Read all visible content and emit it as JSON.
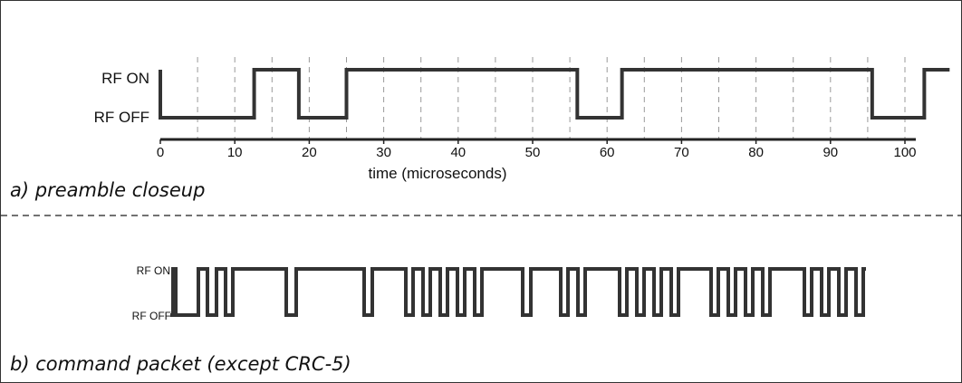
{
  "panel_a": {
    "signal_labels": {
      "on": "RF ON",
      "off": "RF OFF"
    },
    "caption": "a) preamble closeup",
    "xlabel": "time (microseconds)",
    "ticks": [
      "0",
      "10",
      "20",
      "30",
      "40",
      "50",
      "60",
      "70",
      "80",
      "90",
      "100"
    ],
    "levels": [
      {
        "t": 0,
        "v": 0
      },
      {
        "t": 12.6,
        "v": 1
      },
      {
        "t": 18.6,
        "v": 0
      },
      {
        "t": 25,
        "v": 1
      },
      {
        "t": 56,
        "v": 0
      },
      {
        "t": 62,
        "v": 1
      },
      {
        "t": 95.6,
        "v": 0
      },
      {
        "t": 102.6,
        "v": 1
      },
      {
        "t": 106,
        "v": 1
      }
    ]
  },
  "panel_b": {
    "signal_labels": {
      "on": "RF ON",
      "off": "RF OFF"
    },
    "caption": "b)  command packet (except CRC-5)",
    "levels": [
      {
        "t": 0,
        "v": 1
      },
      {
        "t": 3,
        "v": 0
      },
      {
        "t": 28,
        "v": 1
      },
      {
        "t": 38,
        "v": 0
      },
      {
        "t": 48,
        "v": 1
      },
      {
        "t": 58,
        "v": 0
      },
      {
        "t": 66,
        "v": 1
      },
      {
        "t": 125,
        "v": 0
      },
      {
        "t": 136,
        "v": 1
      },
      {
        "t": 211,
        "v": 0
      },
      {
        "t": 220,
        "v": 1
      },
      {
        "t": 257,
        "v": 0
      },
      {
        "t": 265,
        "v": 1
      },
      {
        "t": 276,
        "v": 0
      },
      {
        "t": 284,
        "v": 1
      },
      {
        "t": 295,
        "v": 0
      },
      {
        "t": 303,
        "v": 1
      },
      {
        "t": 314,
        "v": 0
      },
      {
        "t": 322,
        "v": 1
      },
      {
        "t": 333,
        "v": 0
      },
      {
        "t": 341,
        "v": 1
      },
      {
        "t": 386,
        "v": 0
      },
      {
        "t": 395,
        "v": 1
      },
      {
        "t": 428,
        "v": 0
      },
      {
        "t": 436,
        "v": 1
      },
      {
        "t": 447,
        "v": 0
      },
      {
        "t": 455,
        "v": 1
      },
      {
        "t": 493,
        "v": 0
      },
      {
        "t": 501,
        "v": 1
      },
      {
        "t": 512,
        "v": 0
      },
      {
        "t": 520,
        "v": 1
      },
      {
        "t": 531,
        "v": 0
      },
      {
        "t": 539,
        "v": 1
      },
      {
        "t": 550,
        "v": 0
      },
      {
        "t": 558,
        "v": 1
      },
      {
        "t": 594,
        "v": 0
      },
      {
        "t": 602,
        "v": 1
      },
      {
        "t": 613,
        "v": 0
      },
      {
        "t": 621,
        "v": 1
      },
      {
        "t": 632,
        "v": 0
      },
      {
        "t": 640,
        "v": 1
      },
      {
        "t": 651,
        "v": 0
      },
      {
        "t": 659,
        "v": 1
      },
      {
        "t": 697,
        "v": 0
      },
      {
        "t": 705,
        "v": 1
      },
      {
        "t": 716,
        "v": 0
      },
      {
        "t": 724,
        "v": 1
      },
      {
        "t": 735,
        "v": 0
      },
      {
        "t": 743,
        "v": 1
      },
      {
        "t": 754,
        "v": 0
      },
      {
        "t": 762,
        "v": 1
      },
      {
        "t": 765,
        "v": 1
      }
    ]
  },
  "colors": {
    "signal": "#333333",
    "grid": "#999999",
    "text": "#111111"
  }
}
